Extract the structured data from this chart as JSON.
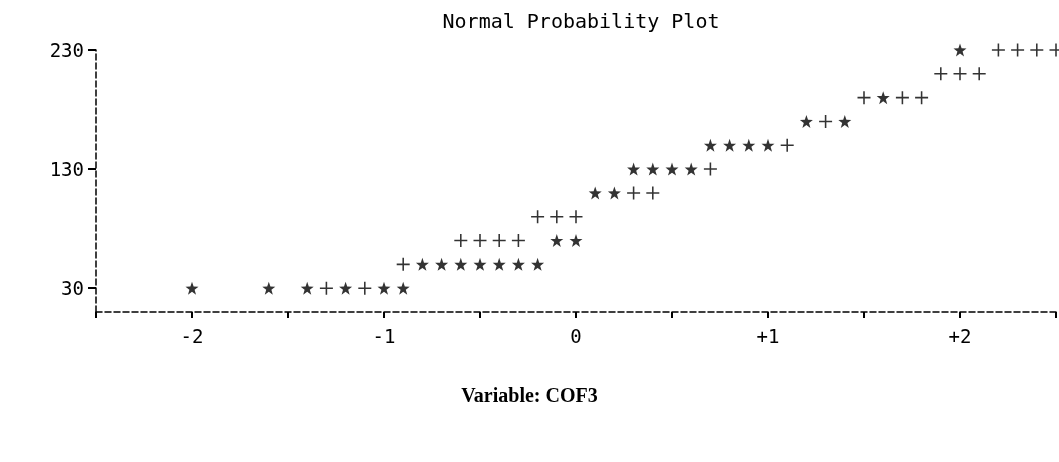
{
  "chart_data": {
    "type": "scatter",
    "title": "Normal Probability Plot",
    "annotations": [
      "Variable: COF3"
    ],
    "xlim": [
      -2.5,
      2.5
    ],
    "ylim": [
      10,
      230
    ],
    "xticks": [
      {
        "value": -2.5,
        "label": null
      },
      -2,
      {
        "value": -1.5,
        "label": null
      },
      -1,
      {
        "value": -0.5,
        "label": null
      },
      0,
      {
        "value": 0.5,
        "label": null
      },
      {
        "value": 1,
        "label": "+1"
      },
      {
        "value": 1.5,
        "label": null
      },
      {
        "value": 2,
        "label": "+2"
      },
      {
        "value": 2.5,
        "label": null
      }
    ],
    "yticks": [
      30,
      130,
      230
    ],
    "grid": false,
    "series": [
      {
        "marker": "star",
        "color": "#000000",
        "x": [
          -2.0,
          -1.6,
          -1.4,
          -1.2,
          -1.0,
          -0.9,
          -0.8,
          -0.7,
          -0.6,
          -0.5,
          -0.4,
          -0.3,
          -0.2,
          -0.1,
          0.0,
          0.1,
          0.2,
          0.3,
          0.4,
          0.5,
          0.6,
          0.7,
          0.8,
          0.9,
          1.0,
          1.2,
          1.4,
          1.6,
          2.0
        ],
        "values": [
          30,
          30,
          30,
          30,
          30,
          30,
          50,
          50,
          50,
          50,
          50,
          50,
          50,
          70,
          70,
          110,
          110,
          130,
          130,
          130,
          130,
          150,
          150,
          150,
          150,
          170,
          170,
          190,
          230
        ]
      },
      {
        "marker": "cross",
        "color": "#000000",
        "x": [
          -1.3,
          -1.1,
          -0.9,
          -0.6,
          -0.5,
          -0.4,
          -0.3,
          -0.2,
          -0.1,
          0.0,
          0.3,
          0.4,
          0.7,
          1.1,
          1.3,
          1.5,
          1.7,
          1.8,
          1.9,
          2.0,
          2.1,
          2.2,
          2.3,
          2.4,
          2.5
        ],
        "values": [
          30,
          30,
          50,
          70,
          70,
          70,
          70,
          90,
          90,
          90,
          110,
          110,
          130,
          150,
          170,
          190,
          190,
          190,
          210,
          210,
          210,
          230,
          230,
          230,
          230
        ]
      }
    ]
  }
}
